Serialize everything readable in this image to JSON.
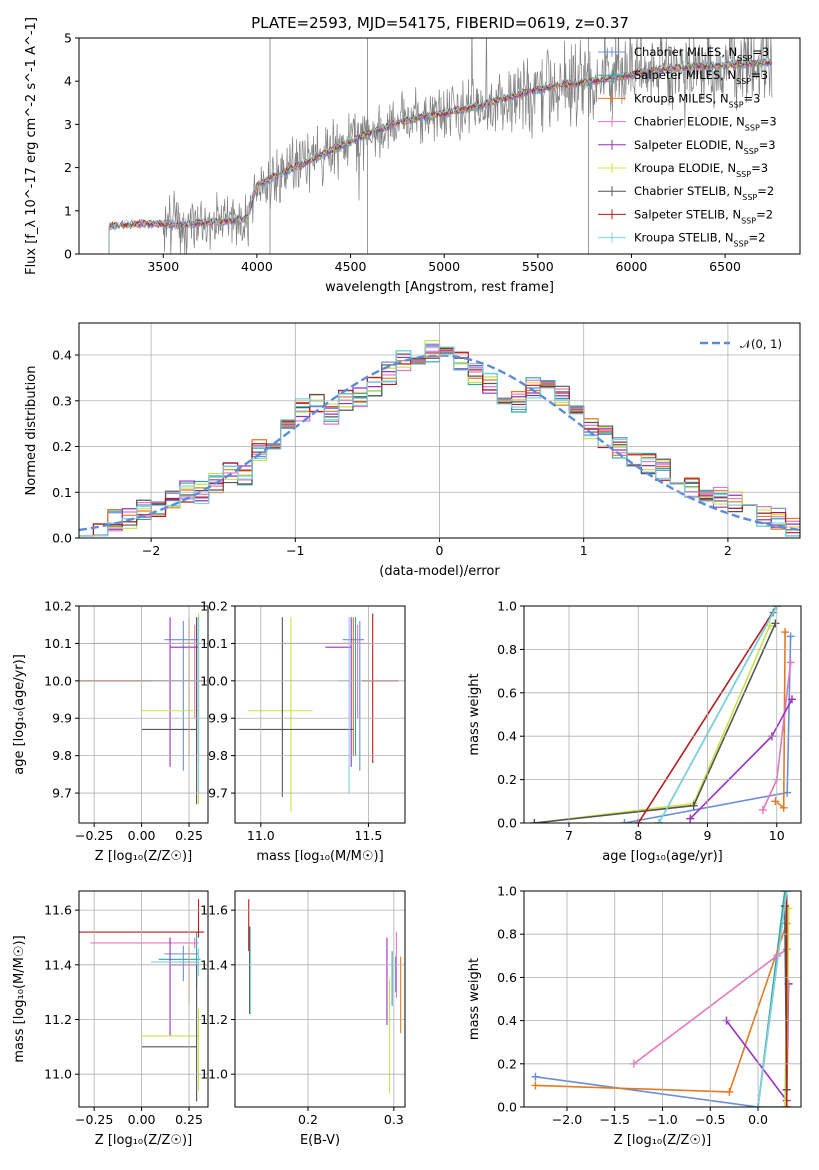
{
  "title": "PLATE=2593, MJD=54175, FIBERID=0619, z=0.37",
  "colors": {
    "chabrier_miles": "#6b8fd6",
    "salpeter_miles": "#2ca6a4",
    "kroupa_miles": "#e07b22",
    "chabrier_elodie": "#e377c2",
    "salpeter_elodie": "#9b2fbf",
    "kroupa_elodie": "#c9e44a",
    "chabrier_stelib": "#555555",
    "salpeter_stelib": "#b51c1c",
    "kroupa_stelib": "#7fd3e0",
    "data": "#808080",
    "normal": "#5b8bd9"
  },
  "chart_data": [
    {
      "type": "line",
      "panel": "spectrum",
      "xlabel": "wavelength [Angstrom, rest frame]",
      "ylabel": "Flux [f_λ 10^-17 erg cm^-2 s^-1 A^-1]",
      "xlim": [
        3050,
        6900
      ],
      "ylim": [
        0,
        5
      ],
      "xticks": [
        "3500",
        "4000",
        "4500",
        "5000",
        "5500",
        "6000",
        "6500"
      ],
      "yticks": [
        "0",
        "1",
        "2",
        "3",
        "4",
        "5"
      ],
      "legend_position": "top-right",
      "series": [
        {
          "name": "Chabrier MILES, N_SSP=3",
          "key": "chabrier_miles"
        },
        {
          "name": "Salpeter MILES, N_SSP=3",
          "key": "salpeter_miles"
        },
        {
          "name": "Kroupa MILES, N_SSP=3",
          "key": "kroupa_miles"
        },
        {
          "name": "Chabrier ELODIE, N_SSP=3",
          "key": "chabrier_elodie"
        },
        {
          "name": "Salpeter ELODIE, N_SSP=3",
          "key": "salpeter_elodie"
        },
        {
          "name": "Kroupa ELODIE, N_SSP=3",
          "key": "kroupa_elodie"
        },
        {
          "name": "Chabrier STELIB, N_SSP=2",
          "key": "chabrier_stelib"
        },
        {
          "name": "Salpeter STELIB, N_SSP=2",
          "key": "salpeter_stelib"
        },
        {
          "name": "Kroupa STELIB, N_SSP=2",
          "key": "kroupa_stelib"
        }
      ],
      "model_continuum": {
        "x": [
          3200,
          3400,
          3600,
          3800,
          3950,
          4000,
          4200,
          4400,
          4600,
          4800,
          5000,
          5200,
          5400,
          5600,
          5800,
          6000,
          6200,
          6400,
          6600,
          6750
        ],
        "y": [
          0.65,
          0.7,
          0.68,
          0.75,
          0.8,
          1.6,
          2.0,
          2.4,
          2.8,
          3.1,
          3.25,
          3.45,
          3.7,
          3.9,
          4.0,
          4.15,
          4.3,
          4.35,
          4.4,
          4.45
        ]
      }
    },
    {
      "type": "bar",
      "panel": "residual_histogram",
      "xlabel": "(data-model)/error",
      "ylabel": "Normed distribution",
      "xlim": [
        -2.5,
        2.5
      ],
      "ylim": [
        0,
        0.47
      ],
      "xticks": [
        "−2",
        "−1",
        "0",
        "1",
        "2"
      ],
      "yticks": [
        "0.0",
        "0.1",
        "0.2",
        "0.3",
        "0.4"
      ],
      "legend": "𝒩(0, 1)",
      "bin_width": 0.1,
      "bin_centers": [
        -2.45,
        -2.35,
        -2.25,
        -2.15,
        -2.05,
        -1.95,
        -1.85,
        -1.75,
        -1.65,
        -1.55,
        -1.45,
        -1.35,
        -1.25,
        -1.15,
        -1.05,
        -0.95,
        -0.85,
        -0.75,
        -0.65,
        -0.55,
        -0.45,
        -0.35,
        -0.25,
        -0.15,
        -0.05,
        0.05,
        0.15,
        0.25,
        0.35,
        0.45,
        0.55,
        0.65,
        0.75,
        0.85,
        0.95,
        1.05,
        1.15,
        1.25,
        1.35,
        1.45,
        1.55,
        1.65,
        1.75,
        1.85,
        1.95,
        2.05,
        2.15,
        2.25,
        2.35,
        2.45
      ],
      "mean_values": [
        0.03,
        0.03,
        0.04,
        0.04,
        0.06,
        0.07,
        0.09,
        0.1,
        0.1,
        0.12,
        0.14,
        0.14,
        0.19,
        0.21,
        0.25,
        0.28,
        0.29,
        0.27,
        0.3,
        0.31,
        0.33,
        0.36,
        0.39,
        0.4,
        0.41,
        0.42,
        0.39,
        0.36,
        0.34,
        0.31,
        0.3,
        0.33,
        0.32,
        0.31,
        0.27,
        0.24,
        0.22,
        0.2,
        0.18,
        0.16,
        0.15,
        0.13,
        0.11,
        0.1,
        0.09,
        0.08,
        0.07,
        0.05,
        0.04,
        0.02
      ]
    },
    {
      "type": "scatter",
      "panel": "age_vs_Z",
      "xlabel": "Z [log₁₀(Z/Z☉)]",
      "ylabel": "age  [log₁₀(age/yr)]",
      "xlim": [
        -0.33,
        0.35
      ],
      "ylim": [
        9.62,
        10.2
      ],
      "xticks": [
        "−0.25",
        "0.00",
        "0.25"
      ],
      "yticks": [
        "9.7",
        "9.8",
        "9.9",
        "10.0",
        "10.1",
        "10.2"
      ],
      "points": [
        {
          "key": "chabrier_miles",
          "x": 0.22,
          "y": 10.11,
          "xerr": [
            0.1,
            0.08
          ],
          "yerr": [
            0.35,
            0.05
          ]
        },
        {
          "key": "salpeter_miles",
          "x": 0.29,
          "y": 10.1,
          "xerr": [
            0.05,
            0.02
          ],
          "yerr": [
            0.3,
            0.07
          ]
        },
        {
          "key": "kroupa_miles",
          "x": 0.25,
          "y": 10.1,
          "xerr": [
            0.05,
            0.05
          ],
          "yerr": [
            0.3,
            0.07
          ]
        },
        {
          "key": "chabrier_elodie",
          "x": 0.28,
          "y": 10.1,
          "xerr": [
            0.55,
            0.02
          ],
          "yerr": [
            0.2,
            0.05
          ]
        },
        {
          "key": "salpeter_elodie",
          "x": 0.15,
          "y": 10.09,
          "xerr": [
            0.0,
            0.15
          ],
          "yerr": [
            0.32,
            0.08
          ]
        },
        {
          "key": "kroupa_elodie",
          "x": 0.3,
          "y": 9.92,
          "xerr": [
            0.3,
            0.0
          ],
          "yerr": [
            0.25,
            0.26
          ]
        },
        {
          "key": "chabrier_stelib",
          "x": 0.29,
          "y": 9.87,
          "xerr": [
            0.29,
            0.0
          ],
          "yerr": [
            0.2,
            0.3
          ]
        },
        {
          "key": "salpeter_stelib",
          "x": 0.3,
          "y": 10.0,
          "xerr": [
            0.63,
            0.03
          ],
          "yerr": [
            0.22,
            0.17
          ]
        },
        {
          "key": "kroupa_stelib",
          "x": 0.3,
          "y": 10.0,
          "xerr": [
            0.25,
            0.0
          ],
          "yerr": [
            0.3,
            0.17
          ]
        }
      ]
    },
    {
      "type": "scatter",
      "panel": "age_vs_mass",
      "xlabel": "mass [log₁₀(M/M☉)]",
      "ylabel": "",
      "xlim": [
        10.88,
        11.67
      ],
      "ylim": [
        9.62,
        10.2
      ],
      "xticks": [
        "11.0",
        "11.5"
      ],
      "yticks": [
        "9.7",
        "9.8",
        "9.9",
        "10.0",
        "10.1",
        "10.2"
      ],
      "points": [
        {
          "key": "chabrier_miles",
          "x": 11.46,
          "y": 10.11,
          "xerr": [
            0.08,
            0.02
          ],
          "yerr": [
            0.35,
            0.05
          ]
        },
        {
          "key": "salpeter_miles",
          "x": 11.44,
          "y": 10.1,
          "xerr": [
            0.05,
            0.03
          ],
          "yerr": [
            0.3,
            0.07
          ]
        },
        {
          "key": "kroupa_miles",
          "x": 11.43,
          "y": 10.1,
          "xerr": [
            0.05,
            0.06
          ],
          "yerr": [
            0.3,
            0.07
          ]
        },
        {
          "key": "chabrier_elodie",
          "x": 11.45,
          "y": 10.1,
          "xerr": [
            0.35,
            0.02
          ],
          "yerr": [
            0.2,
            0.05
          ]
        },
        {
          "key": "salpeter_elodie",
          "x": 11.42,
          "y": 10.09,
          "xerr": [
            0.12,
            0.0
          ],
          "yerr": [
            0.32,
            0.08
          ]
        },
        {
          "key": "kroupa_elodie",
          "x": 11.14,
          "y": 9.92,
          "xerr": [
            0.2,
            0.1
          ],
          "yerr": [
            0.27,
            0.25
          ]
        },
        {
          "key": "chabrier_stelib",
          "x": 11.1,
          "y": 9.87,
          "xerr": [
            0.2,
            0.33
          ],
          "yerr": [
            0.18,
            0.3
          ]
        },
        {
          "key": "salpeter_stelib",
          "x": 11.52,
          "y": 10.0,
          "xerr": [
            0.05,
            0.12
          ],
          "yerr": [
            0.22,
            0.18
          ]
        },
        {
          "key": "kroupa_stelib",
          "x": 11.41,
          "y": 10.0,
          "xerr": [
            0.05,
            0.0
          ],
          "yerr": [
            0.3,
            0.17
          ]
        }
      ]
    },
    {
      "type": "line",
      "panel": "mass_weight_vs_age",
      "xlabel": "age  [log₁₀(age/yr)]",
      "ylabel": "mass weight",
      "xlim": [
        6.35,
        10.35
      ],
      "ylim": [
        0,
        1
      ],
      "xticks": [
        "7",
        "8",
        "9",
        "10"
      ],
      "yticks": [
        "0.0",
        "0.2",
        "0.4",
        "0.6",
        "0.8",
        "1.0"
      ],
      "series": [
        {
          "key": "chabrier_miles",
          "x": [
            7.8,
            10.15,
            10.2
          ],
          "y": [
            0.0,
            0.14,
            0.86
          ]
        },
        {
          "key": "salpeter_miles",
          "x": [
            8.3,
            9.95,
            10.0
          ],
          "y": [
            0.0,
            0.97,
            1.0
          ]
        },
        {
          "key": "kroupa_miles",
          "x": [
            9.98,
            10.1,
            10.12
          ],
          "y": [
            0.1,
            0.07,
            0.88
          ]
        },
        {
          "key": "chabrier_elodie",
          "x": [
            9.8,
            10.0,
            10.2
          ],
          "y": [
            0.06,
            0.2,
            0.74
          ]
        },
        {
          "key": "salpeter_elodie",
          "x": [
            8.75,
            9.93,
            10.22
          ],
          "y": [
            0.02,
            0.4,
            0.57
          ]
        },
        {
          "key": "kroupa_elodie",
          "x": [
            6.5,
            8.8,
            9.9
          ],
          "y": [
            0.0,
            0.09,
            0.91
          ]
        },
        {
          "key": "chabrier_stelib",
          "x": [
            6.5,
            8.8,
            9.98
          ],
          "y": [
            0.0,
            0.08,
            0.92
          ]
        },
        {
          "key": "salpeter_stelib",
          "x": [
            8.0,
            10.0
          ],
          "y": [
            0.0,
            1.0
          ]
        },
        {
          "key": "kroupa_stelib",
          "x": [
            8.3,
            10.0
          ],
          "y": [
            0.0,
            1.0
          ]
        }
      ]
    },
    {
      "type": "scatter",
      "panel": "mass_vs_Z",
      "xlabel": "Z [log₁₀(Z/Z☉)]",
      "ylabel": "mass [log₁₀(M/M☉)]",
      "xlim": [
        -0.33,
        0.35
      ],
      "ylim": [
        10.88,
        11.67
      ],
      "xticks": [
        "−0.25",
        "0.00",
        "0.25"
      ],
      "yticks": [
        "11.0",
        "11.2",
        "11.4",
        "11.6"
      ],
      "points": [
        {
          "key": "chabrier_miles",
          "x": 0.22,
          "y": 11.44,
          "xerr": [
            0.1,
            0.08
          ],
          "yerr": [
            0.1,
            0.03
          ]
        },
        {
          "key": "salpeter_miles",
          "x": 0.29,
          "y": 11.42,
          "xerr": [
            0.2,
            0.02
          ],
          "yerr": [
            0.1,
            0.1
          ]
        },
        {
          "key": "kroupa_miles",
          "x": 0.25,
          "y": 11.41,
          "xerr": [
            0.05,
            0.05
          ],
          "yerr": [
            0.15,
            0.06
          ]
        },
        {
          "key": "chabrier_elodie",
          "x": 0.28,
          "y": 11.48,
          "xerr": [
            0.55,
            0.02
          ],
          "yerr": [
            0.02,
            0.02
          ]
        },
        {
          "key": "salpeter_elodie",
          "x": 0.15,
          "y": 11.4,
          "xerr": [
            0.0,
            0.15
          ],
          "yerr": [
            0.26,
            0.1
          ]
        },
        {
          "key": "kroupa_elodie",
          "x": 0.3,
          "y": 11.14,
          "xerr": [
            0.3,
            0.0
          ],
          "yerr": [
            0.2,
            0.1
          ]
        },
        {
          "key": "chabrier_stelib",
          "x": 0.29,
          "y": 11.1,
          "xerr": [
            0.29,
            0.0
          ],
          "yerr": [
            0.2,
            0.3
          ]
        },
        {
          "key": "salpeter_stelib",
          "x": 0.3,
          "y": 11.52,
          "xerr": [
            0.63,
            0.03
          ],
          "yerr": [
            0.02,
            0.12
          ]
        },
        {
          "key": "kroupa_stelib",
          "x": 0.3,
          "y": 11.41,
          "xerr": [
            0.25,
            0.0
          ],
          "yerr": [
            0.05,
            0.05
          ]
        }
      ]
    },
    {
      "type": "scatter",
      "panel": "mass_vs_ebv",
      "xlabel": "E(B-V)",
      "ylabel": "",
      "xlim": [
        0.115,
        0.313
      ],
      "ylim": [
        10.88,
        11.67
      ],
      "xticks": [
        "0.2",
        "0.3"
      ],
      "yticks": [
        "11.0",
        "11.2",
        "11.4",
        "11.6"
      ],
      "points": [
        {
          "key": "chabrier_miles",
          "x": 0.302,
          "y": 11.4,
          "yerr": [
            0.1,
            0.03
          ]
        },
        {
          "key": "salpeter_miles",
          "x": 0.298,
          "y": 11.4,
          "yerr": [
            0.15,
            0.05
          ]
        },
        {
          "key": "kroupa_miles",
          "x": 0.308,
          "y": 11.3,
          "yerr": [
            0.15,
            0.13
          ]
        },
        {
          "key": "chabrier_elodie",
          "x": 0.303,
          "y": 11.38,
          "yerr": [
            0.1,
            0.14
          ]
        },
        {
          "key": "salpeter_elodie",
          "x": 0.292,
          "y": 11.3,
          "yerr": [
            0.12,
            0.2
          ]
        },
        {
          "key": "kroupa_elodie",
          "x": 0.295,
          "y": 11.2,
          "yerr": [
            0.27,
            0.15
          ]
        },
        {
          "key": "chabrier_stelib",
          "x": 0.132,
          "y": 11.38,
          "yerr": [
            0.16,
            0.16
          ]
        },
        {
          "key": "salpeter_stelib",
          "x": 0.131,
          "y": 11.5,
          "yerr": [
            0.05,
            0.14
          ]
        },
        {
          "key": "kroupa_stelib",
          "x": 0.133,
          "y": 11.38,
          "yerr": [
            0.16,
            0.16
          ]
        }
      ]
    },
    {
      "type": "line",
      "panel": "mass_weight_vs_Z",
      "xlabel": "Z [log₁₀(Z/Z☉)]",
      "ylabel": "mass weight",
      "xlim": [
        -2.45,
        0.45
      ],
      "ylim": [
        0,
        1
      ],
      "xticks": [
        "−2.0",
        "−1.5",
        "−1.0",
        "−0.5",
        "0.0"
      ],
      "yticks": [
        "0.0",
        "0.2",
        "0.4",
        "0.6",
        "0.8",
        "1.0"
      ],
      "series": [
        {
          "key": "chabrier_miles",
          "x": [
            -2.33,
            0.0,
            0.3
          ],
          "y": [
            0.14,
            0.0,
            1.0
          ]
        },
        {
          "key": "salpeter_miles",
          "x": [
            0.3,
            0.0,
            0.28
          ],
          "y": [
            0.0,
            0.0,
            1.0
          ]
        },
        {
          "key": "kroupa_miles",
          "x": [
            -2.33,
            -0.3,
            0.3
          ],
          "y": [
            0.1,
            0.07,
            0.85
          ]
        },
        {
          "key": "chabrier_elodie",
          "x": [
            -1.3,
            0.2,
            0.3
          ],
          "y": [
            0.2,
            0.7,
            0.73
          ]
        },
        {
          "key": "salpeter_elodie",
          "x": [
            -0.33,
            0.3,
            0.32
          ],
          "y": [
            0.4,
            0.03,
            0.57
          ]
        },
        {
          "key": "kroupa_elodie",
          "x": [
            0.3,
            0.32,
            0.28
          ],
          "y": [
            0.08,
            0.92,
            0.0
          ]
        },
        {
          "key": "chabrier_stelib",
          "x": [
            0.3,
            0.28
          ],
          "y": [
            0.08,
            0.93
          ]
        },
        {
          "key": "salpeter_stelib",
          "x": [
            0.3,
            0.3
          ],
          "y": [
            0.0,
            1.0
          ]
        },
        {
          "key": "kroupa_stelib",
          "x": [
            0.0,
            0.3
          ],
          "y": [
            0.0,
            1.0
          ]
        }
      ]
    }
  ]
}
